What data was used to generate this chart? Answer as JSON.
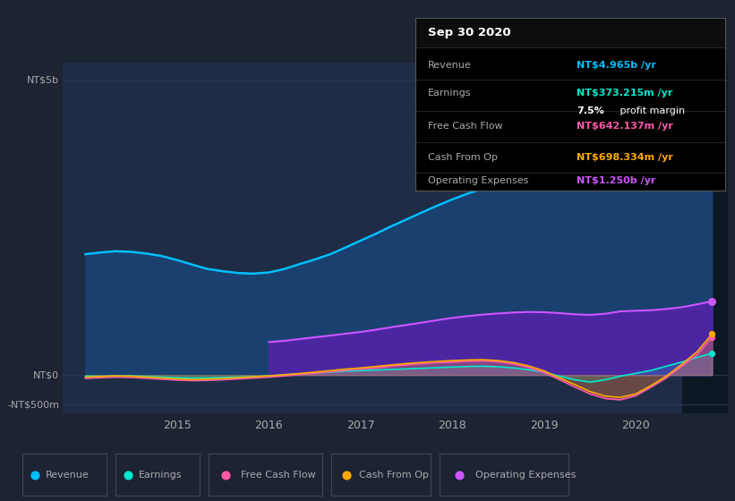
{
  "background_color": "#1c2333",
  "plot_bg_color": "#1e2d45",
  "grid_color": "#2a3a55",
  "text_color": "#aaaaaa",
  "xlim": [
    2013.75,
    2021.0
  ],
  "ylim": [
    -650000000,
    5300000000
  ],
  "xticks": [
    2015,
    2016,
    2017,
    2018,
    2019,
    2020
  ],
  "highlight_start": 2020.5,
  "highlight_bg": "#0d1825",
  "revenue_color": "#00bfff",
  "revenue_fill": "#1a4070",
  "earnings_color": "#00e8cc",
  "earnings_fill": "#00e8cc",
  "fcf_color": "#ff5aaa",
  "fcf_fill": "#ff5aaa",
  "cashop_color": "#ffaa00",
  "cashop_fill": "#ffaa00",
  "opex_color": "#cc55ff",
  "opex_fill": "#5522aa",
  "infobox": {
    "date": "Sep 30 2020",
    "revenue_label": "Revenue",
    "revenue_val": "NT$4.965b",
    "revenue_color": "#00bfff",
    "earnings_label": "Earnings",
    "earnings_val": "NT$373.215m",
    "earnings_color": "#00e8cc",
    "profit_pct": "7.5%",
    "profit_label": " profit margin",
    "fcf_label": "Free Cash Flow",
    "fcf_val": "NT$642.137m",
    "fcf_color": "#ff5aaa",
    "cashop_label": "Cash From Op",
    "cashop_val": "NT$698.334m",
    "cashop_color": "#ffaa00",
    "opex_label": "Operating Expenses",
    "opex_val": "NT$1.250b",
    "opex_color": "#cc55ff"
  },
  "legend_items": [
    "Revenue",
    "Earnings",
    "Free Cash Flow",
    "Cash From Op",
    "Operating Expenses"
  ],
  "legend_colors": [
    "#00bfff",
    "#00e8cc",
    "#ff5aaa",
    "#ffaa00",
    "#cc55ff"
  ],
  "time_points": [
    2014.0,
    2014.17,
    2014.33,
    2014.5,
    2014.67,
    2014.83,
    2015.0,
    2015.17,
    2015.33,
    2015.5,
    2015.67,
    2015.83,
    2016.0,
    2016.17,
    2016.33,
    2016.5,
    2016.67,
    2016.83,
    2017.0,
    2017.17,
    2017.33,
    2017.5,
    2017.67,
    2017.83,
    2018.0,
    2018.17,
    2018.33,
    2018.5,
    2018.67,
    2018.83,
    2019.0,
    2019.17,
    2019.33,
    2019.5,
    2019.67,
    2019.83,
    2020.0,
    2020.17,
    2020.33,
    2020.5,
    2020.67,
    2020.83
  ],
  "revenue": [
    2050000000,
    2080000000,
    2100000000,
    2090000000,
    2060000000,
    2020000000,
    1950000000,
    1870000000,
    1800000000,
    1760000000,
    1730000000,
    1720000000,
    1740000000,
    1800000000,
    1880000000,
    1960000000,
    2050000000,
    2160000000,
    2280000000,
    2400000000,
    2520000000,
    2640000000,
    2760000000,
    2870000000,
    2980000000,
    3080000000,
    3160000000,
    3230000000,
    3290000000,
    3340000000,
    3330000000,
    3290000000,
    3240000000,
    3220000000,
    3280000000,
    3400000000,
    3550000000,
    3720000000,
    3900000000,
    4100000000,
    4400000000,
    4965000000
  ],
  "earnings": [
    -20000000,
    -22000000,
    -18000000,
    -15000000,
    -25000000,
    -35000000,
    -45000000,
    -50000000,
    -48000000,
    -42000000,
    -35000000,
    -28000000,
    -15000000,
    5000000,
    20000000,
    35000000,
    50000000,
    65000000,
    75000000,
    85000000,
    95000000,
    105000000,
    115000000,
    125000000,
    135000000,
    145000000,
    150000000,
    140000000,
    120000000,
    90000000,
    50000000,
    -20000000,
    -80000000,
    -120000000,
    -80000000,
    -20000000,
    30000000,
    80000000,
    150000000,
    220000000,
    300000000,
    373000000
  ],
  "free_cash_flow": [
    -55000000,
    -45000000,
    -35000000,
    -40000000,
    -55000000,
    -70000000,
    -85000000,
    -95000000,
    -90000000,
    -80000000,
    -65000000,
    -50000000,
    -35000000,
    -15000000,
    10000000,
    30000000,
    55000000,
    80000000,
    100000000,
    120000000,
    150000000,
    175000000,
    195000000,
    210000000,
    220000000,
    235000000,
    240000000,
    225000000,
    190000000,
    130000000,
    40000000,
    -80000000,
    -200000000,
    -320000000,
    -400000000,
    -420000000,
    -350000000,
    -200000000,
    -50000000,
    150000000,
    350000000,
    642000000
  ],
  "cash_from_op": [
    -35000000,
    -25000000,
    -15000000,
    -20000000,
    -35000000,
    -50000000,
    -65000000,
    -75000000,
    -70000000,
    -60000000,
    -45000000,
    -30000000,
    -15000000,
    5000000,
    25000000,
    50000000,
    75000000,
    100000000,
    120000000,
    145000000,
    170000000,
    195000000,
    215000000,
    230000000,
    245000000,
    255000000,
    260000000,
    245000000,
    210000000,
    155000000,
    70000000,
    -50000000,
    -160000000,
    -280000000,
    -360000000,
    -380000000,
    -320000000,
    -175000000,
    -20000000,
    180000000,
    400000000,
    698000000
  ],
  "operating_expenses": [
    0,
    0,
    0,
    0,
    0,
    0,
    0,
    0,
    0,
    0,
    0,
    0,
    560000000,
    580000000,
    610000000,
    640000000,
    670000000,
    700000000,
    730000000,
    770000000,
    810000000,
    850000000,
    890000000,
    930000000,
    970000000,
    1000000000,
    1025000000,
    1045000000,
    1060000000,
    1070000000,
    1065000000,
    1050000000,
    1030000000,
    1020000000,
    1040000000,
    1080000000,
    1090000000,
    1100000000,
    1120000000,
    1150000000,
    1200000000,
    1250000000
  ]
}
